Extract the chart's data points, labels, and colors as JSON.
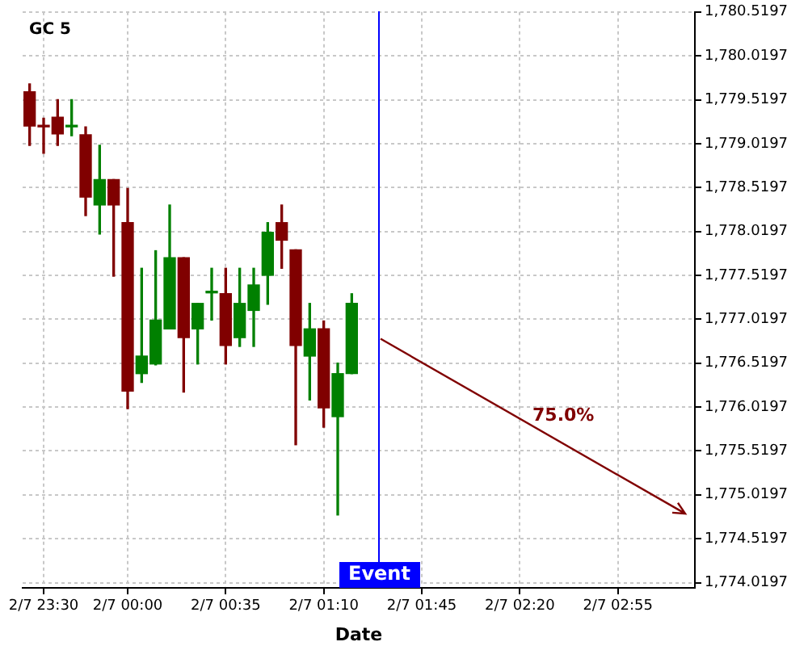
{
  "chart_data": {
    "type": "candlestick",
    "title": "GC 5",
    "xlabel": "Date",
    "categories": [
      null,
      "2/7 23:30",
      null,
      null,
      null,
      null,
      null,
      "2/7 00:00",
      null,
      null,
      null,
      null,
      null,
      null,
      "2/7 00:35",
      null,
      null,
      null,
      null,
      null,
      null,
      "2/7 01:10",
      null,
      null,
      null,
      null,
      null,
      null,
      "2/7 01:45",
      null,
      null,
      null,
      null,
      null,
      null,
      "2/7 02:20",
      null,
      null,
      null,
      null,
      null,
      null,
      "2/7 02:55",
      null,
      null,
      null,
      null,
      null
    ],
    "ohlc": [
      [
        1779.61,
        1779.7,
        1779.0,
        1779.22
      ],
      [
        1779.22,
        1779.31,
        1778.91,
        1779.21
      ],
      [
        1779.32,
        1779.52,
        1779.0,
        1779.13
      ],
      [
        1779.21,
        1779.52,
        1779.11,
        1779.22
      ],
      [
        1779.12,
        1779.21,
        1778.2,
        1778.41
      ],
      [
        1778.32,
        1779.0,
        1777.99,
        1778.61
      ],
      [
        1778.61,
        1778.61,
        1777.51,
        1778.32
      ],
      [
        1778.12,
        1778.51,
        1776.0,
        1776.2
      ],
      [
        1776.4,
        1777.6,
        1776.3,
        1776.6
      ],
      [
        1776.51,
        1777.8,
        1776.5,
        1777.01
      ],
      [
        1776.91,
        1778.32,
        1776.91,
        1777.72
      ],
      [
        1777.72,
        1777.72,
        1776.19,
        1776.81
      ],
      [
        1776.91,
        1777.2,
        1776.51,
        1777.2
      ],
      [
        1777.32,
        1777.6,
        1777.01,
        1777.33
      ],
      [
        1777.31,
        1777.6,
        1776.51,
        1776.72
      ],
      [
        1776.81,
        1777.6,
        1776.71,
        1777.2
      ],
      [
        1777.12,
        1777.6,
        1776.71,
        1777.41
      ],
      [
        1777.52,
        1778.12,
        1777.19,
        1778.01
      ],
      [
        1778.12,
        1778.32,
        1777.6,
        1777.92
      ],
      [
        1777.81,
        1777.81,
        1775.59,
        1776.72
      ],
      [
        1776.6,
        1777.2,
        1776.1,
        1776.91
      ],
      [
        1776.91,
        1777.0,
        1775.79,
        1776.01
      ],
      [
        1775.91,
        1776.52,
        1774.79,
        1776.4
      ],
      [
        1776.4,
        1777.31,
        1776.4,
        1777.2
      ],
      null,
      null,
      null,
      null,
      null,
      null,
      null,
      null,
      null,
      null,
      null,
      null,
      null,
      null,
      null,
      null,
      null,
      null,
      null,
      null,
      null,
      null,
      null,
      null
    ],
    "colors": [
      "#800000",
      "#800000",
      "#800000",
      "#008000",
      "#800000",
      "#008000",
      "#800000",
      "#800000",
      "#008000",
      "#008000",
      "#008000",
      "#800000",
      "#008000",
      "#008000",
      "#800000",
      "#008000",
      "#008000",
      "#008000",
      "#800000",
      "#800000",
      "#008000",
      "#800000",
      "#008000",
      "#008000",
      null,
      null,
      null,
      null,
      null,
      null,
      null,
      null,
      null,
      null,
      null,
      null,
      null,
      null,
      null,
      null,
      null,
      null,
      null,
      null,
      null,
      null,
      null,
      null
    ],
    "annotations": [
      "75.0%",
      "Event"
    ],
    "ylim": [
      1773.96,
      1780.5197
    ],
    "yticks": [
      {
        "value": 1774.0197,
        "label": "1,774.0197"
      },
      {
        "value": 1774.5197,
        "label": "1,774.5197"
      },
      {
        "value": 1775.0197,
        "label": "1,775.0197"
      },
      {
        "value": 1775.5197,
        "label": "1,775.5197"
      },
      {
        "value": 1776.0197,
        "label": "1,776.0197"
      },
      {
        "value": 1776.5197,
        "label": "1,776.5197"
      },
      {
        "value": 1777.0197,
        "label": "1,777.0197"
      },
      {
        "value": 1777.5197,
        "label": "1,777.5197"
      },
      {
        "value": 1778.0197,
        "label": "1,778.0197"
      },
      {
        "value": 1778.5197,
        "label": "1,778.5197"
      },
      {
        "value": 1779.0197,
        "label": "1,779.0197"
      },
      {
        "value": 1779.5197,
        "label": "1,779.5197"
      },
      {
        "value": 1780.0197,
        "label": "1,780.0197"
      },
      {
        "value": 1780.5197,
        "label": "1,780.5197"
      }
    ],
    "grid": true
  }
}
